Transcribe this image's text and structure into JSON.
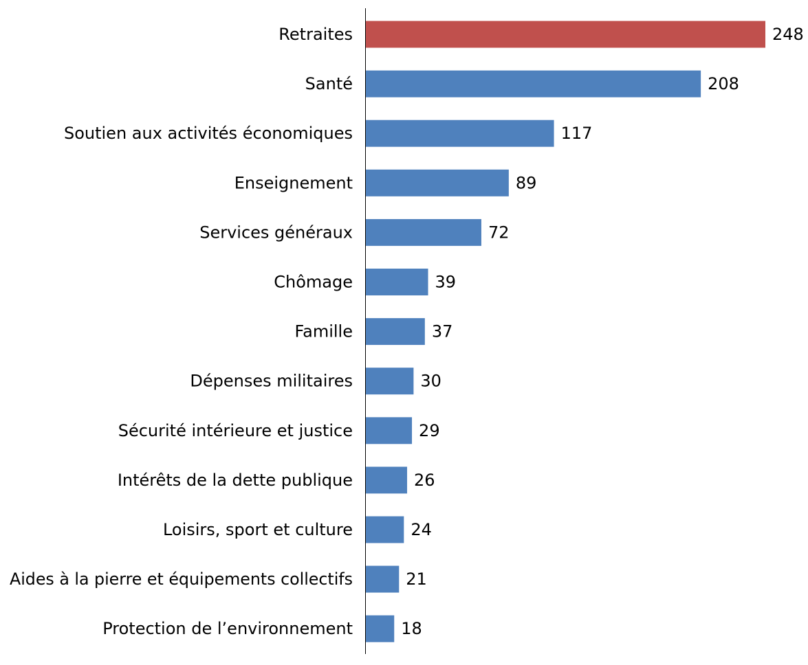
{
  "chart_data": {
    "type": "bar",
    "orientation": "horizontal",
    "categories": [
      "Retraites",
      "Santé",
      "Soutien aux activités économiques",
      "Enseignement",
      "Services généraux",
      "Chômage",
      "Famille",
      "Dépenses militaires",
      "Sécurité intérieure et justice",
      "Intérêts de la dette publique",
      "Loisirs, sport et culture",
      "Aides à la pierre et équipements collectifs",
      "Protection de l’environnement"
    ],
    "values": [
      248,
      208,
      117,
      89,
      72,
      39,
      37,
      30,
      29,
      26,
      24,
      21,
      18
    ],
    "highlight_index": 0,
    "colors": {
      "highlight": "#C0504D",
      "bar": "#4F81BD",
      "axis": "#000000",
      "text": "#000000"
    },
    "xlim": [
      0,
      248
    ],
    "grid": false,
    "legend": "none",
    "data_labels": true
  }
}
